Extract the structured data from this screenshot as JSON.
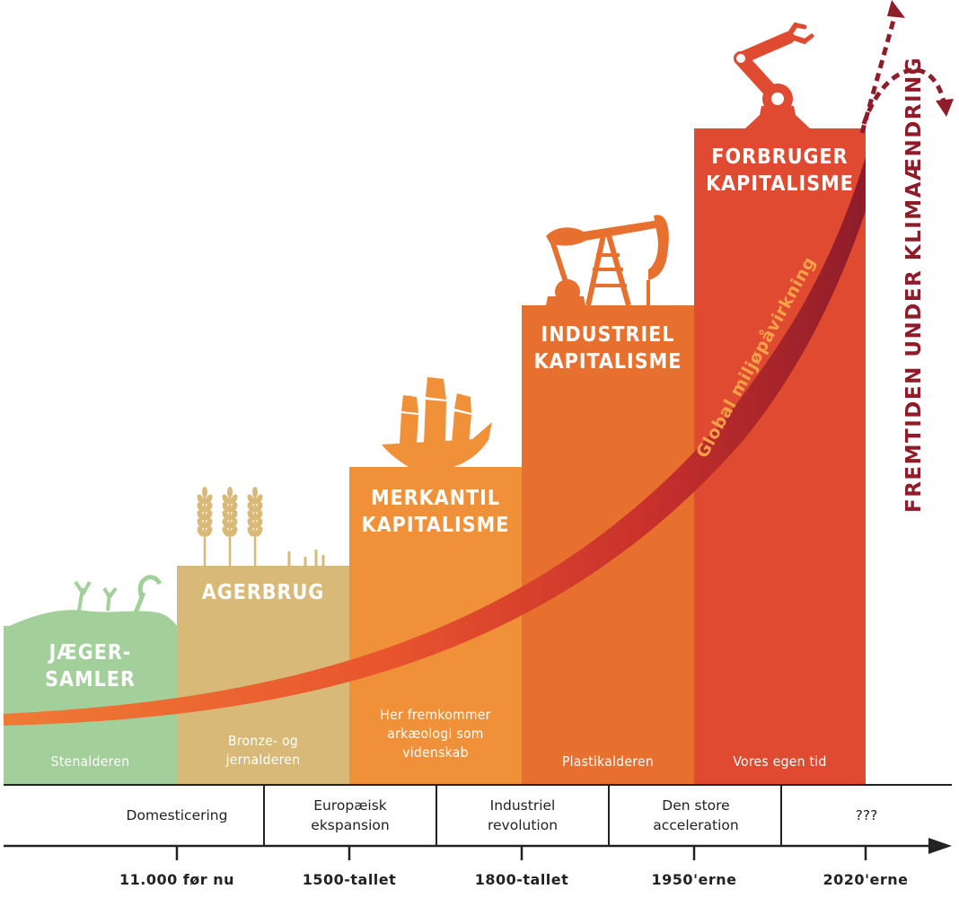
{
  "eras": [
    {
      "title_lines": [
        "JÆGER-",
        "SAMLER"
      ],
      "subtitle": "Stenalderen",
      "color": "#a3cf9a"
    },
    {
      "title_lines": [
        "AGERBRUG"
      ],
      "subtitle": "Bronze- og jernalderen",
      "color": "#d9b978"
    },
    {
      "title_lines": [
        "MERKANTIL",
        "KAPITALISME"
      ],
      "subtitle": "Her fremkommer arkæologi som videnskab",
      "color": "#f0913a"
    },
    {
      "title_lines": [
        "INDUSTRIEL",
        "KAPITALISME"
      ],
      "subtitle": "Plastikalderen",
      "color": "#e8702f"
    },
    {
      "title_lines": [
        "FORBRUGER",
        "KAPITALISME"
      ],
      "subtitle": "Vores egen tid",
      "color": "#df4a30"
    }
  ],
  "events": [
    "Domesticering",
    "Europæisk ekspansion",
    "Industriel revolution",
    "Den store acceleration",
    "???"
  ],
  "ticks": [
    "11.000 før nu",
    "1500-tallet",
    "1800-tallet",
    "1950'erne",
    "2020'erne"
  ],
  "curve_label": "Global miljøpåvirkning",
  "future_label": "FREMTIDEN UNDER KLIMAÆNDRING",
  "icons": [
    "grass-sprouts-icon",
    "wheat-icon",
    "sailing-ship-icon",
    "oil-pump-icon",
    "robot-arm-icon"
  ],
  "colors": {
    "curve_dark": "#8e1c2a",
    "curve_light": "#f08a3a",
    "axis": "#222222",
    "future_arrows": "#8e1c2a"
  }
}
